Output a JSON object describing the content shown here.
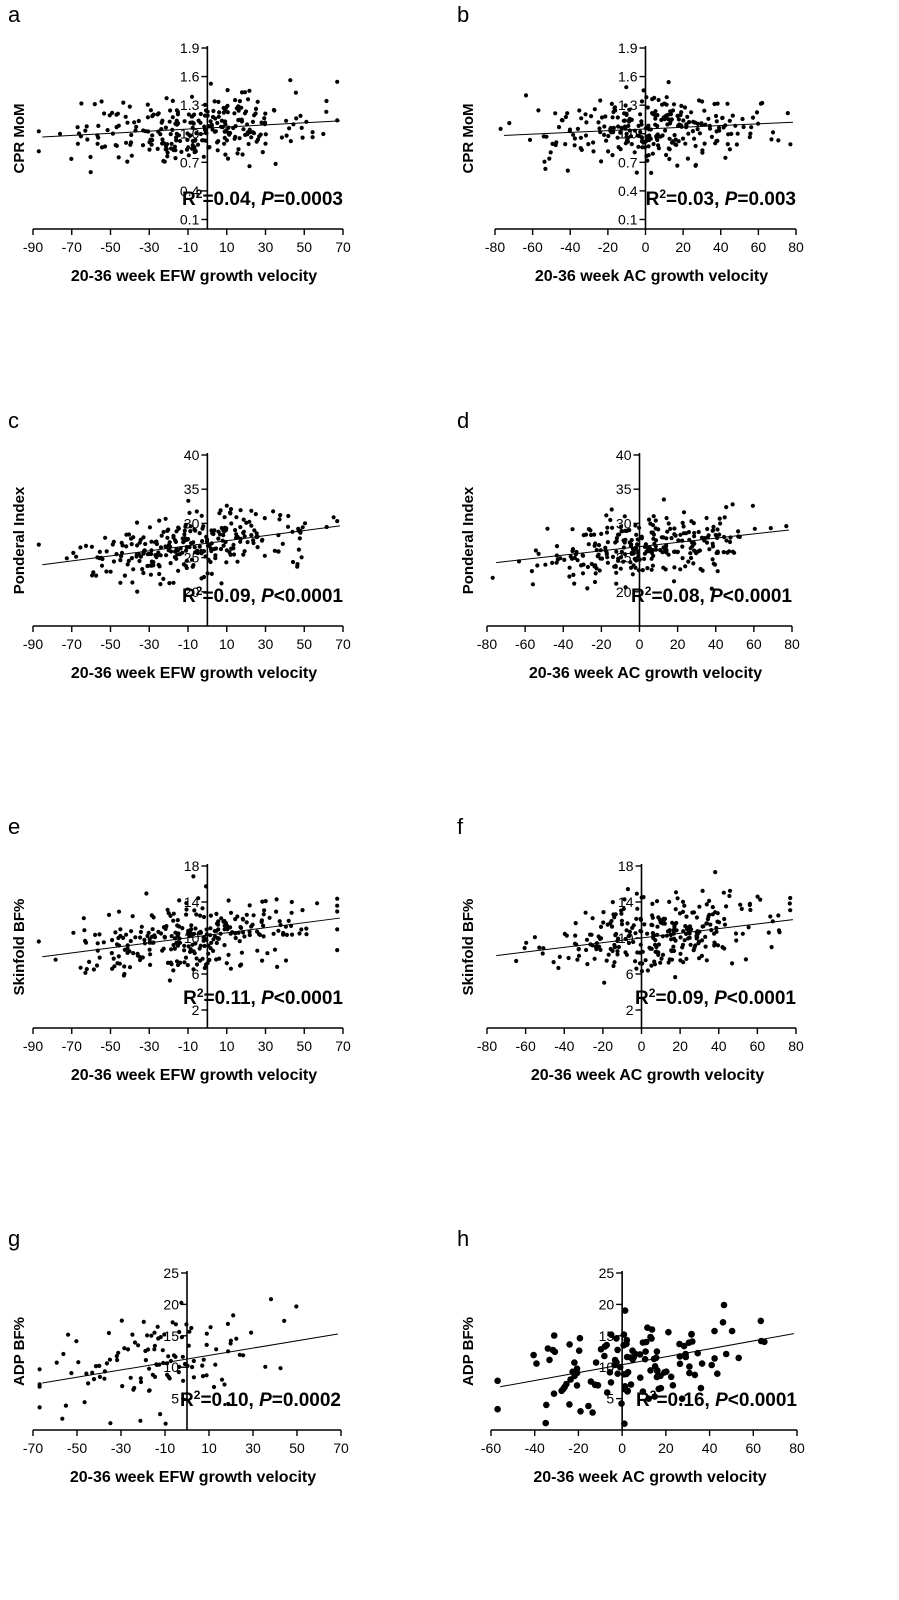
{
  "chart_data": [
    {
      "panel": "a",
      "type": "scatter",
      "xlabel": "20-36 week EFW growth velocity",
      "ylabel": "CPR MoM",
      "xlim": [
        -90,
        70
      ],
      "xticks": [
        -90,
        -70,
        -50,
        -30,
        -10,
        10,
        30,
        50,
        70
      ],
      "ylim": [
        0.0,
        1.9
      ],
      "yticks": [
        0.1,
        0.4,
        0.7,
        1.0,
        1.3,
        1.6,
        1.9
      ],
      "yaxis_at_x": 0,
      "yticks_inside": true,
      "stat": {
        "r2": "0.04",
        "p": "0.0003",
        "p_op": "="
      },
      "fit": {
        "slope": 0.0011,
        "intercept": 1.06
      },
      "n_points": 280,
      "x_mean": -8,
      "x_sd": 30,
      "y_sd": 0.17
    },
    {
      "panel": "b",
      "type": "scatter",
      "xlabel": "20-36 week AC growth velocity",
      "ylabel": "CPR MoM",
      "xlim": [
        -80,
        80
      ],
      "xticks": [
        -80,
        -60,
        -40,
        -20,
        0,
        20,
        40,
        60,
        80
      ],
      "ylim": [
        0.0,
        1.9
      ],
      "yticks": [
        0.1,
        0.4,
        0.7,
        1.0,
        1.3,
        1.6,
        1.9
      ],
      "yaxis_at_x": 0,
      "yticks_inside": true,
      "stat": {
        "r2": "0.03",
        "p": "0.003",
        "p_op": "="
      },
      "fit": {
        "slope": 0.0009,
        "intercept": 1.05
      },
      "n_points": 280,
      "x_mean": 5,
      "x_sd": 28,
      "y_sd": 0.17
    },
    {
      "panel": "c",
      "type": "scatter",
      "xlabel": "20-36 week EFW growth velocity",
      "ylabel": "Ponderal Index",
      "xlim": [
        -90,
        70
      ],
      "xticks": [
        -90,
        -70,
        -50,
        -30,
        -10,
        10,
        30,
        50,
        70
      ],
      "ylim": [
        15,
        40
      ],
      "yticks": [
        20,
        25,
        30,
        35,
        40
      ],
      "yaxis_at_x": 0,
      "yticks_inside": false,
      "stat": {
        "r2": "0.09",
        "p": "0.0001",
        "p_op": "<"
      },
      "fit": {
        "slope": 0.037,
        "intercept": 27.1
      },
      "n_points": 280,
      "x_mean": -8,
      "x_sd": 30,
      "y_sd": 2.4
    },
    {
      "panel": "d",
      "type": "scatter",
      "xlabel": "20-36 week AC growth velocity",
      "ylabel": "Ponderal Index",
      "xlim": [
        -80,
        80
      ],
      "xticks": [
        -80,
        -60,
        -40,
        -20,
        0,
        20,
        40,
        60,
        80
      ],
      "ylim": [
        15,
        40
      ],
      "yticks": [
        20,
        25,
        30,
        35,
        40
      ],
      "yaxis_at_x": 0,
      "yticks_inside": false,
      "stat": {
        "r2": "0.08",
        "p": "0.0001",
        "p_op": "<"
      },
      "fit": {
        "slope": 0.031,
        "intercept": 26.6
      },
      "n_points": 280,
      "x_mean": 5,
      "x_sd": 28,
      "y_sd": 2.4
    },
    {
      "panel": "e",
      "type": "scatter",
      "xlabel": "20-36 week EFW growth velocity",
      "ylabel": "Skinfold BF%",
      "xlim": [
        -90,
        70
      ],
      "xticks": [
        -90,
        -70,
        -50,
        -30,
        -10,
        10,
        30,
        50,
        70
      ],
      "ylim": [
        0,
        18
      ],
      "yticks": [
        2,
        6,
        10,
        14,
        18
      ],
      "yaxis_at_x": 0,
      "yticks_inside": true,
      "stat": {
        "r2": "0.11",
        "p": "0.0001",
        "p_op": "<"
      },
      "fit": {
        "slope": 0.028,
        "intercept": 10.3
      },
      "n_points": 280,
      "x_mean": -8,
      "x_sd": 30,
      "y_sd": 1.9
    },
    {
      "panel": "f",
      "type": "scatter",
      "xlabel": "20-36 week AC growth velocity",
      "ylabel": "Skinfold BF%",
      "xlim": [
        -80,
        80
      ],
      "xticks": [
        -80,
        -60,
        -40,
        -20,
        0,
        20,
        40,
        60,
        80
      ],
      "ylim": [
        0,
        18
      ],
      "yticks": [
        2,
        6,
        10,
        14,
        18
      ],
      "yaxis_at_x": 0,
      "yticks_inside": false,
      "stat": {
        "r2": "0.09",
        "p": "0.0001",
        "p_op": "<"
      },
      "fit": {
        "slope": 0.026,
        "intercept": 10.0
      },
      "n_points": 280,
      "x_mean": 5,
      "x_sd": 28,
      "y_sd": 1.9
    },
    {
      "panel": "g",
      "type": "scatter",
      "xlabel": "20-36 week EFW growth velocity",
      "ylabel": "ADP BF%",
      "xlim": [
        -70,
        70
      ],
      "xticks": [
        -70,
        -50,
        -30,
        -10,
        10,
        30,
        50,
        70
      ],
      "ylim": [
        0,
        25
      ],
      "yticks": [
        5,
        10,
        15,
        20,
        25
      ],
      "yaxis_at_x": 0,
      "yticks_inside": false,
      "stat": {
        "r2": "0.10",
        "p": "0.0002",
        "p_op": "="
      },
      "fit": {
        "slope": 0.058,
        "intercept": 11.3
      },
      "n_points": 120,
      "x_mean": -15,
      "x_sd": 26,
      "y_sd": 3.9
    },
    {
      "panel": "h",
      "type": "scatter",
      "xlabel": "20-36 week AC growth velocity",
      "ylabel": "ADP BF%",
      "xlim": [
        -60,
        80
      ],
      "xticks": [
        -60,
        -40,
        -20,
        0,
        20,
        40,
        60,
        80
      ],
      "ylim": [
        0,
        25
      ],
      "yticks": [
        5,
        10,
        15,
        20,
        25
      ],
      "yaxis_at_x": 0,
      "yticks_inside": false,
      "stat": {
        "r2": "0.16",
        "p": "0.0001",
        "p_op": "<"
      },
      "fit": {
        "slope": 0.063,
        "intercept": 10.4
      },
      "n_points": 130,
      "x_mean": 8,
      "x_sd": 27,
      "y_sd": 3.6,
      "large_points": true
    }
  ]
}
